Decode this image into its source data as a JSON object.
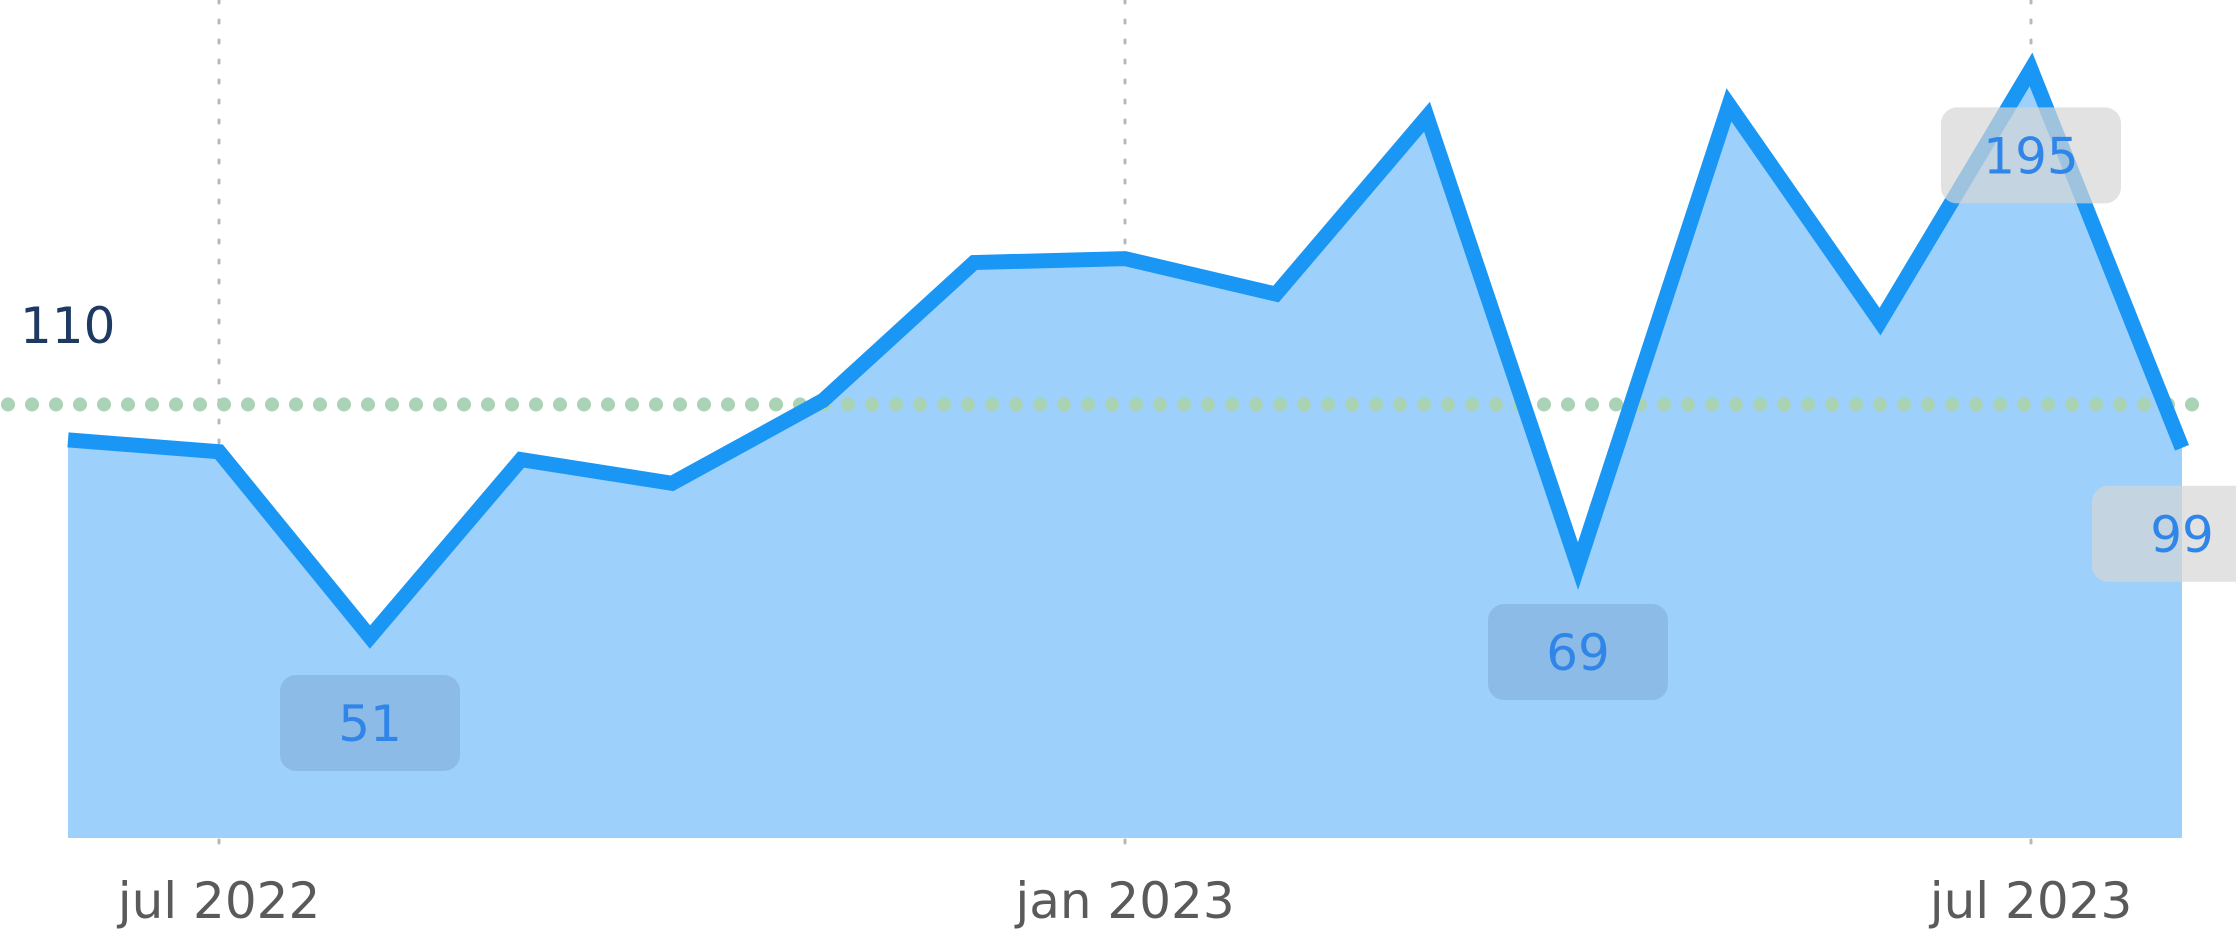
{
  "chart_data": {
    "type": "area",
    "x": [
      "2022-06",
      "2022-07",
      "2022-08",
      "2022-09",
      "2022-10",
      "2022-11",
      "2022-12",
      "2023-01",
      "2023-02",
      "2023-03",
      "2023-04",
      "2023-05",
      "2023-06",
      "2023-07",
      "2023-08"
    ],
    "values": [
      101,
      98,
      51,
      96,
      90,
      111,
      146,
      147,
      138,
      183,
      69,
      186,
      131,
      195,
      99
    ],
    "x_ticks": [
      {
        "x": "2022-07",
        "label": "jul 2022"
      },
      {
        "x": "2023-01",
        "label": "jan 2023"
      },
      {
        "x": "2023-07",
        "label": "jul 2023"
      }
    ],
    "reference_line": {
      "value": 110,
      "label": "110",
      "color": "#a9d3b4"
    },
    "data_labels": [
      {
        "x": "2022-08",
        "label": "51",
        "position": "below"
      },
      {
        "x": "2023-04",
        "label": "69",
        "position": "below"
      },
      {
        "x": "2023-07",
        "label": "195",
        "position": "below"
      },
      {
        "x": "2023-08",
        "label": "99",
        "position": "below"
      }
    ],
    "ylim": [
      0,
      205
    ],
    "grid": {
      "vertical": true,
      "horizontal": false
    },
    "colors": {
      "line": "#1a96f5",
      "area": "#9dd1fc",
      "grid": "#b8b8b8",
      "label_text": "#2f86e8",
      "label_box_dark": "#7fa9d6",
      "label_box_light": "#d6d6d6"
    }
  }
}
